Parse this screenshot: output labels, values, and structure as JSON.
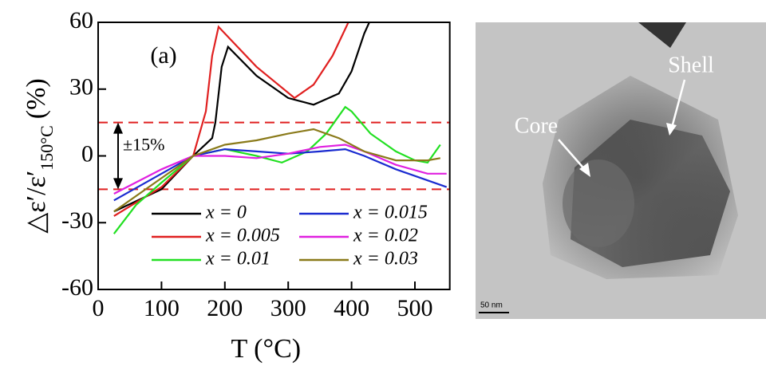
{
  "chart_data": {
    "type": "line",
    "annotation": "(a)",
    "band_label": "±15%",
    "reference_lines": [
      15,
      -15
    ],
    "reference_color": "#e02020",
    "xlabel": "T (°C)",
    "ylabel": "△ε′/ε′",
    "ylabel_subscript": "150°C",
    "ylabel_unit": "(%)",
    "xlim": [
      0,
      555
    ],
    "ylim": [
      -60,
      60
    ],
    "xticks": [
      0,
      100,
      200,
      300,
      400,
      500
    ],
    "yticks": [
      -60,
      -30,
      0,
      30,
      60
    ],
    "legend": "lower center",
    "series": [
      {
        "name": "x = 0",
        "color": "#000000",
        "x": [
          25,
          100,
          150,
          180,
          185,
          195,
          205,
          250,
          300,
          340,
          380,
          400,
          420,
          428
        ],
        "values": [
          -25,
          -15,
          0,
          8,
          15,
          40,
          49,
          36,
          26,
          23,
          28,
          38,
          55,
          60
        ]
      },
      {
        "name": "x = 0.005",
        "color": "#e02020",
        "x": [
          25,
          100,
          150,
          170,
          180,
          190,
          200,
          250,
          310,
          340,
          370,
          395
        ],
        "values": [
          -27,
          -14,
          0,
          20,
          45,
          58,
          55,
          40,
          26,
          32,
          45,
          60
        ]
      },
      {
        "name": "x = 0.01",
        "color": "#22e022",
        "x": [
          25,
          60,
          100,
          150,
          200,
          250,
          290,
          330,
          360,
          380,
          390,
          400,
          430,
          470,
          500,
          520,
          540
        ],
        "values": [
          -35,
          -22,
          -12,
          0,
          3,
          0,
          -3,
          2,
          10,
          18,
          22,
          20,
          10,
          2,
          -2,
          -3,
          5
        ]
      },
      {
        "name": "x = 0.015",
        "color": "#1a2bd0",
        "x": [
          25,
          100,
          150,
          200,
          250,
          300,
          350,
          390,
          420,
          470,
          550
        ],
        "values": [
          -20,
          -8,
          0,
          3,
          2,
          1,
          2,
          3,
          0,
          -6,
          -14
        ]
      },
      {
        "name": "x = 0.02",
        "color": "#e020e0",
        "x": [
          25,
          100,
          150,
          200,
          250,
          300,
          350,
          390,
          420,
          470,
          520,
          550
        ],
        "values": [
          -17,
          -6,
          0,
          0,
          -1,
          1,
          4,
          5,
          2,
          -4,
          -8,
          -8
        ]
      },
      {
        "name": "x = 0.03",
        "color": "#8a7a1a",
        "x": [
          25,
          100,
          150,
          200,
          250,
          300,
          340,
          380,
          420,
          470,
          520,
          540
        ],
        "values": [
          -25,
          -10,
          0,
          5,
          7,
          10,
          12,
          8,
          2,
          -2,
          -2,
          -1
        ]
      }
    ]
  },
  "image": {
    "labels": {
      "core": "Core",
      "shell": "Shell",
      "scale_bar": "50 nm"
    }
  }
}
